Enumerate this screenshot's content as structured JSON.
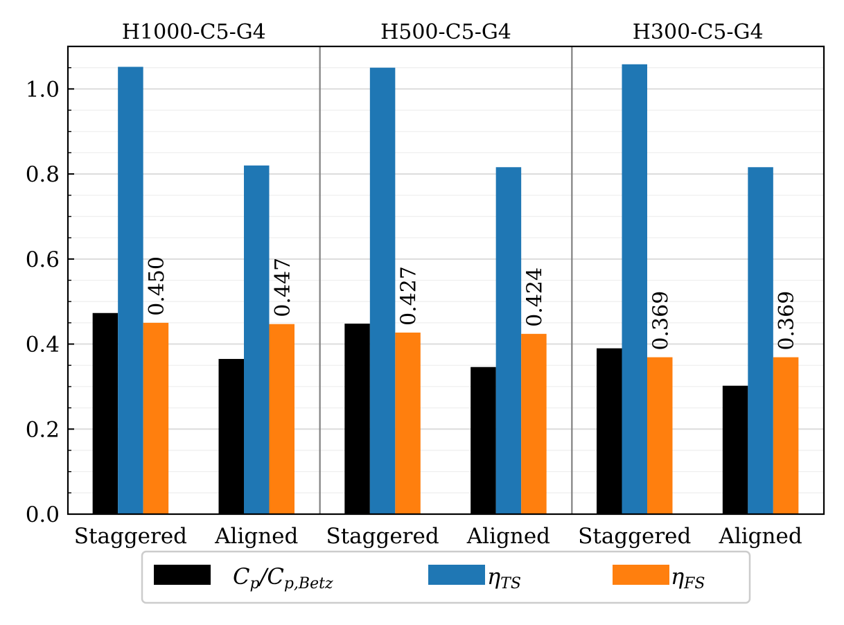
{
  "chart_data": {
    "type": "bar",
    "panels": [
      {
        "title": "H1000-C5-G4",
        "categories": [
          "Staggered",
          "Aligned"
        ]
      },
      {
        "title": "H500-C5-G4",
        "categories": [
          "Staggered",
          "Aligned"
        ]
      },
      {
        "title": "H300-C5-G4",
        "categories": [
          "Staggered",
          "Aligned"
        ]
      }
    ],
    "series": [
      {
        "name": "C_p/C_{p,Betz}",
        "color": "#000000",
        "values": [
          0.473,
          0.365,
          0.448,
          0.346,
          0.39,
          0.302
        ]
      },
      {
        "name": "η_{TS}",
        "color": "#1f77b4",
        "values": [
          1.052,
          0.82,
          1.05,
          0.816,
          1.058,
          0.816
        ]
      },
      {
        "name": "η_{FS}",
        "color": "#ff7f0e",
        "values": [
          0.45,
          0.447,
          0.427,
          0.424,
          0.369,
          0.369
        ],
        "labels": [
          "0.450",
          "0.447",
          "0.427",
          "0.424",
          "0.369",
          "0.369"
        ]
      }
    ],
    "yticks": [
      "0.0",
      "0.2",
      "0.4",
      "0.6",
      "0.8",
      "1.0"
    ],
    "ylim": [
      0,
      1.1
    ],
    "grid": true,
    "legend": {
      "position": "bottom-center",
      "columns": 3
    }
  }
}
